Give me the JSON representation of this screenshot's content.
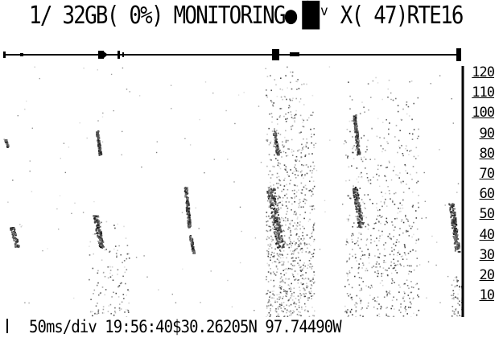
{
  "header": {
    "status_line": "1/ 32GB( 0%)  MONITORING●▐█ᵛ X( 47)RTE16"
  },
  "frequency_scale": {
    "labels": [
      "120",
      "110",
      "100",
      "90",
      "80",
      "70",
      "60",
      "50",
      "40",
      "30",
      "20",
      "10"
    ]
  },
  "footer": {
    "timebase": "50ms/div",
    "time": "19:56:40",
    "latitude": "$30.26205N",
    "longitude": "97.74490W",
    "readout": "50ms/div 19:56:40$30.26205N  97.74490W"
  }
}
